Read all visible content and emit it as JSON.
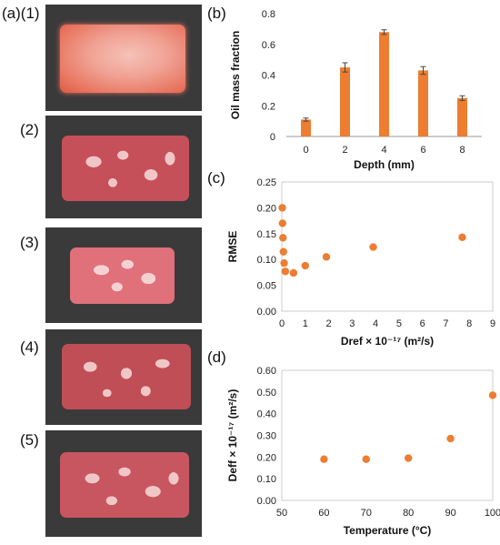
{
  "panels": {
    "a": "(a)",
    "b": "(b)",
    "c": "(c)",
    "d": "(d)",
    "photo_labels": [
      "(1)",
      "(2)",
      "(3)",
      "(4)",
      "(5)"
    ]
  },
  "colors": {
    "accent": "#ED7D31",
    "slab_1": "#E8735E",
    "slab_marbled": "#C6505A",
    "photo_bg": "#3A3A3A"
  },
  "chart_data": [
    {
      "id": "b",
      "type": "bar",
      "categories": [
        "0",
        "2",
        "4",
        "6",
        "8"
      ],
      "values": [
        0.11,
        0.45,
        0.68,
        0.43,
        0.25
      ],
      "errors": [
        0.01,
        0.03,
        0.015,
        0.025,
        0.015
      ],
      "xlabel": "Depth (mm)",
      "ylabel": "Oil mass fraction",
      "ylim": [
        0,
        0.8
      ],
      "yticks": [
        "0",
        "0.2",
        "0.4",
        "0.6",
        "0.8"
      ],
      "grid": false
    },
    {
      "id": "c",
      "type": "scatter",
      "x": [
        0.02,
        0.03,
        0.05,
        0.07,
        0.1,
        0.15,
        0.5,
        1.0,
        1.9,
        3.9,
        7.7
      ],
      "y": [
        0.2,
        0.17,
        0.142,
        0.115,
        0.093,
        0.077,
        0.074,
        0.088,
        0.105,
        0.124,
        0.143
      ],
      "xlabel": "Dref × 10⁻¹⁷ (m²/s)",
      "ylabel": "RMSE",
      "xlim": [
        0,
        9
      ],
      "ylim": [
        0,
        0.25
      ],
      "xticks": [
        "0",
        "1",
        "2",
        "3",
        "4",
        "5",
        "6",
        "7",
        "8",
        "9"
      ],
      "yticks": [
        "0.00",
        "0.05",
        "0.10",
        "0.15",
        "0.20",
        "0.25"
      ],
      "grid": false
    },
    {
      "id": "d",
      "type": "scatter",
      "x": [
        60,
        70,
        80,
        90,
        100
      ],
      "y": [
        0.19,
        0.19,
        0.195,
        0.285,
        0.485
      ],
      "xlabel": "Temperature (°C)",
      "ylabel": "Deff × 10⁻¹⁷ (m²/s)",
      "xlim": [
        50,
        100
      ],
      "ylim": [
        0,
        0.6
      ],
      "xticks": [
        "50",
        "60",
        "70",
        "80",
        "90",
        "100"
      ],
      "yticks": [
        "0.00",
        "0.10",
        "0.20",
        "0.30",
        "0.40",
        "0.50",
        "0.60"
      ],
      "grid": false
    }
  ]
}
